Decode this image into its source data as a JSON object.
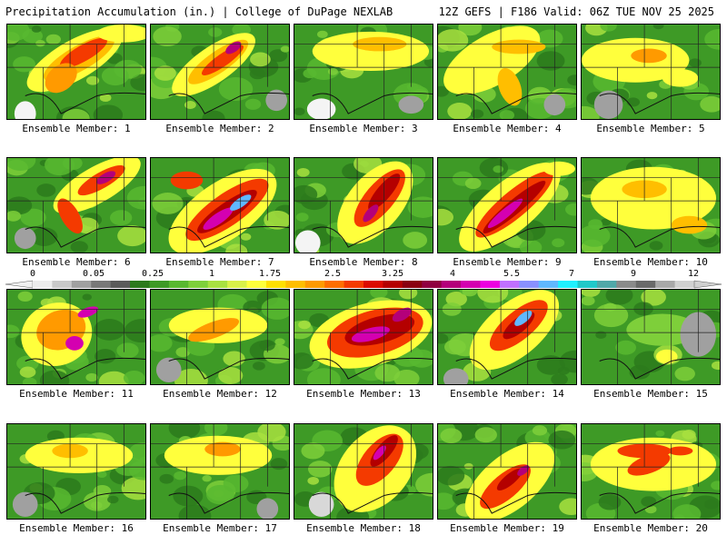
{
  "header": {
    "title_left": "Precipitation Accumulation (in.) | College of DuPage NEXLAB",
    "title_right": "12Z GEFS | F186 Valid: 06Z TUE NOV 25 2025"
  },
  "colorbar": {
    "ticks": [
      "0",
      "0.05",
      "0.25",
      "1",
      "1.75",
      "2.5",
      "3.25",
      "4",
      "5.5",
      "7",
      "9",
      "12"
    ],
    "colors": [
      "#ececec",
      "#c8c8c8",
      "#a0a0a0",
      "#787878",
      "#5a5a5a",
      "#2c7a1c",
      "#3e9a26",
      "#58b830",
      "#7ecf3a",
      "#a8e040",
      "#d8f048",
      "#ffff3c",
      "#ffe000",
      "#ffbe00",
      "#ff9a00",
      "#ff6e00",
      "#f43a00",
      "#dc0a00",
      "#b40000",
      "#8a0010",
      "#900040",
      "#b4007a",
      "#d400b0",
      "#ec00e0",
      "#c070ff",
      "#8a90ff",
      "#60b8ff",
      "#20f0ff",
      "#20c8c8",
      "#50a8a8",
      "#8a8a8a",
      "#6a6a6a",
      "#a8a8a8",
      "#d0d0d0"
    ]
  },
  "panels": [
    {
      "label": "Ensemble Member: 1"
    },
    {
      "label": "Ensemble Member: 2"
    },
    {
      "label": "Ensemble Member: 3"
    },
    {
      "label": "Ensemble Member: 4"
    },
    {
      "label": "Ensemble Member: 5"
    },
    {
      "label": "Ensemble Member: 6"
    },
    {
      "label": "Ensemble Member: 7"
    },
    {
      "label": "Ensemble Member: 8"
    },
    {
      "label": "Ensemble Member: 9"
    },
    {
      "label": "Ensemble Member: 10"
    },
    {
      "label": "Ensemble Member: 11"
    },
    {
      "label": "Ensemble Member: 12"
    },
    {
      "label": "Ensemble Member: 13"
    },
    {
      "label": "Ensemble Member: 14"
    },
    {
      "label": "Ensemble Member: 15"
    },
    {
      "label": "Ensemble Member: 16"
    },
    {
      "label": "Ensemble Member: 17"
    },
    {
      "label": "Ensemble Member: 18"
    },
    {
      "label": "Ensemble Member: 19"
    },
    {
      "label": "Ensemble Member: 20"
    }
  ]
}
